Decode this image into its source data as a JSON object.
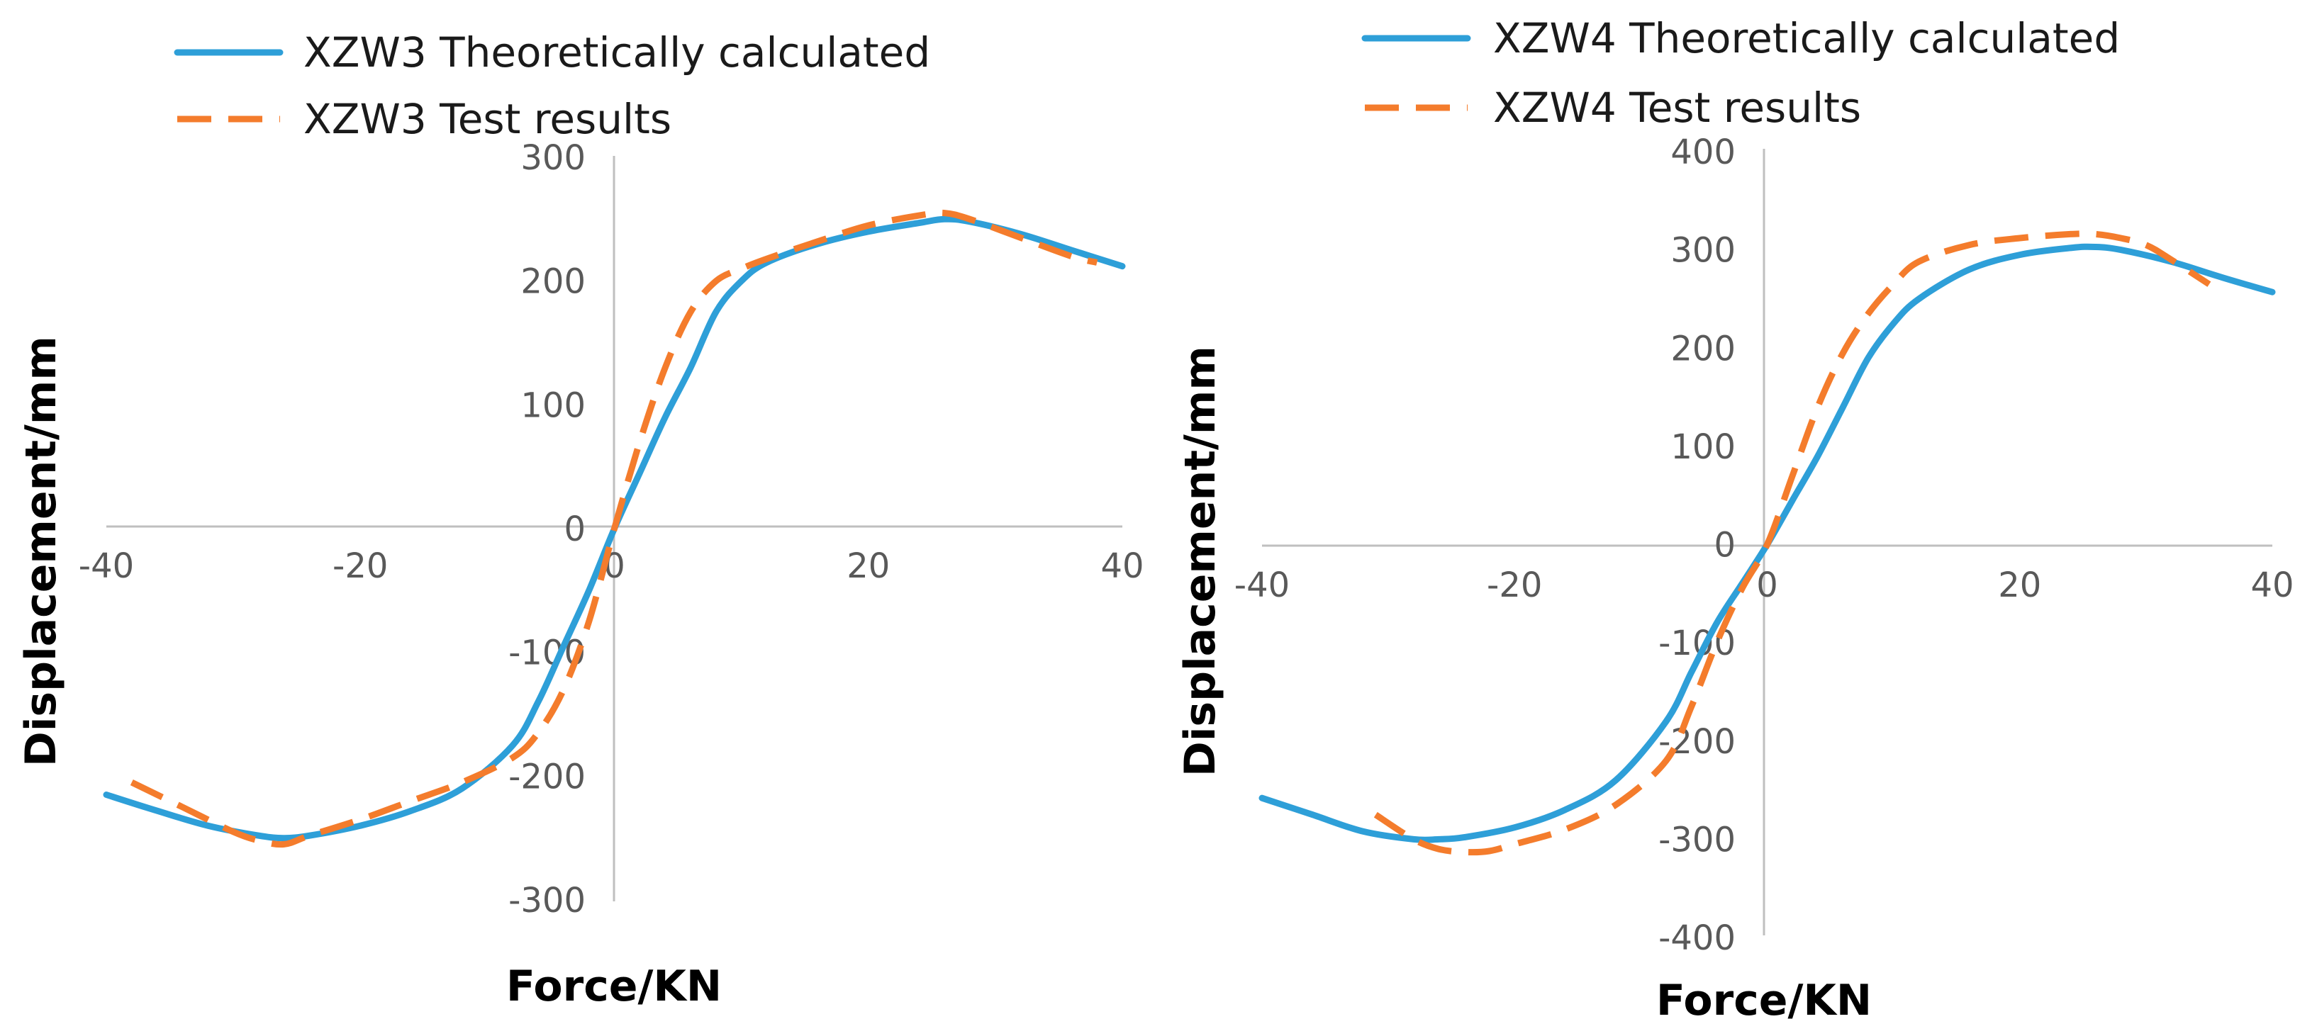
{
  "chart_data": [
    {
      "type": "line",
      "title": "",
      "xlabel": "Force/KN",
      "ylabel": "Displacement/mm",
      "xlim": [
        -40,
        40
      ],
      "ylim": [
        -300,
        300
      ],
      "x_ticks": [
        -40,
        -20,
        0,
        20,
        40
      ],
      "y_ticks": [
        -300,
        -200,
        -100,
        0,
        100,
        200,
        300
      ],
      "legend_position": "top-left",
      "grid": false,
      "series": [
        {
          "name": "XZW3 Theoretically calculated",
          "style": "solid",
          "color": "#2e9fd8",
          "x": [
            -40,
            -36,
            -32,
            -28,
            -26,
            -24,
            -20,
            -16,
            -12,
            -8,
            -6,
            -4,
            -2,
            0,
            2,
            4,
            6,
            8,
            10,
            12,
            16,
            20,
            24,
            26,
            28,
            32,
            36,
            40
          ],
          "y": [
            -215,
            -228,
            -240,
            -248,
            -250,
            -248,
            -240,
            -228,
            -210,
            -175,
            -140,
            -95,
            -50,
            0,
            45,
            90,
            130,
            175,
            200,
            215,
            230,
            240,
            247,
            250,
            248,
            238,
            225,
            212
          ]
        },
        {
          "name": "XZW3 Test results",
          "style": "dashed",
          "color": "#f47c2c",
          "x": [
            -38,
            -34,
            -30,
            -28,
            -26,
            -24,
            -20,
            -16,
            -12,
            -8,
            -6,
            -4,
            -2,
            0,
            2,
            4,
            6,
            8,
            10,
            12,
            16,
            20,
            24,
            26,
            28,
            32,
            36,
            38
          ],
          "y": [
            -205,
            -225,
            -245,
            -252,
            -255,
            -248,
            -235,
            -220,
            -205,
            -185,
            -165,
            -130,
            -75,
            0,
            70,
            130,
            175,
            200,
            210,
            218,
            232,
            245,
            253,
            255,
            250,
            235,
            220,
            215
          ]
        }
      ]
    },
    {
      "type": "line",
      "title": "",
      "xlabel": "Force/KN",
      "ylabel": "Displacement/mm",
      "xlim": [
        -40,
        40
      ],
      "ylim": [
        -400,
        400
      ],
      "x_ticks": [
        -40,
        -20,
        0,
        20,
        40
      ],
      "y_ticks": [
        -400,
        -300,
        -200,
        -100,
        0,
        100,
        200,
        300,
        400
      ],
      "legend_position": "top-left",
      "grid": false,
      "series": [
        {
          "name": "XZW4 Theoretically calculated",
          "style": "solid",
          "color": "#2e9fd8",
          "x": [
            -40,
            -36,
            -32,
            -28,
            -26,
            -24,
            -20,
            -16,
            -12,
            -8,
            -6,
            -4,
            -2,
            0,
            2,
            4,
            6,
            8,
            10,
            12,
            16,
            20,
            24,
            26,
            28,
            32,
            36,
            40
          ],
          "y": [
            -258,
            -275,
            -292,
            -300,
            -300,
            -298,
            -288,
            -270,
            -240,
            -180,
            -130,
            -80,
            -40,
            0,
            45,
            90,
            140,
            190,
            225,
            250,
            280,
            295,
            302,
            303,
            300,
            288,
            272,
            257
          ]
        },
        {
          "name": "XZW4 Test results",
          "style": "dashed",
          "color": "#f47c2c",
          "x": [
            -31,
            -28,
            -26,
            -24,
            -22,
            -20,
            -16,
            -12,
            -8,
            -6,
            -4,
            -2,
            0,
            2,
            4,
            6,
            8,
            10,
            12,
            16,
            20,
            24,
            26,
            28,
            30,
            32,
            35
          ],
          "y": [
            -275,
            -300,
            -310,
            -313,
            -312,
            -305,
            -290,
            -265,
            -220,
            -165,
            -100,
            -45,
            0,
            70,
            140,
            195,
            235,
            265,
            288,
            305,
            312,
            316,
            316,
            312,
            305,
            290,
            265
          ]
        }
      ]
    }
  ]
}
